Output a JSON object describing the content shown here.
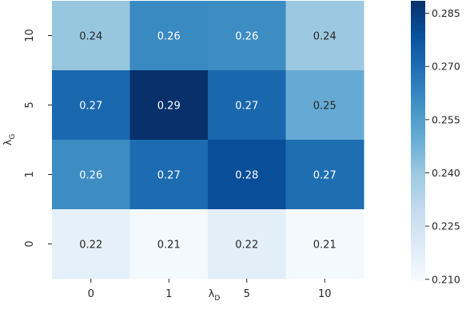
{
  "chart_data": {
    "type": "heatmap",
    "title": "",
    "xlabel": "λ",
    "xlabel_sub": "D",
    "ylabel": "λ",
    "ylabel_sub": "G",
    "x_categories": [
      "0",
      "1",
      "5",
      "10"
    ],
    "y_categories": [
      "10",
      "5",
      "1",
      "0"
    ],
    "values": [
      [
        0.24,
        0.26,
        0.26,
        0.24
      ],
      [
        0.27,
        0.29,
        0.27,
        0.25
      ],
      [
        0.26,
        0.27,
        0.28,
        0.27
      ],
      [
        0.22,
        0.21,
        0.22,
        0.21
      ]
    ],
    "cell_values_fine": [
      [
        0.2405,
        0.2612,
        0.2605,
        0.2395
      ],
      [
        0.2715,
        0.2885,
        0.2718,
        0.2505
      ],
      [
        0.2605,
        0.2705,
        0.2795,
        0.2698
      ],
      [
        0.2165,
        0.2108,
        0.2178,
        0.2105
      ]
    ],
    "colorbar": {
      "ticks": [
        "0.210",
        "0.225",
        "0.240",
        "0.255",
        "0.270",
        "0.285"
      ],
      "range": [
        0.2095,
        0.2885
      ],
      "colormap": "Blues"
    },
    "legend": "colorbar-right"
  }
}
